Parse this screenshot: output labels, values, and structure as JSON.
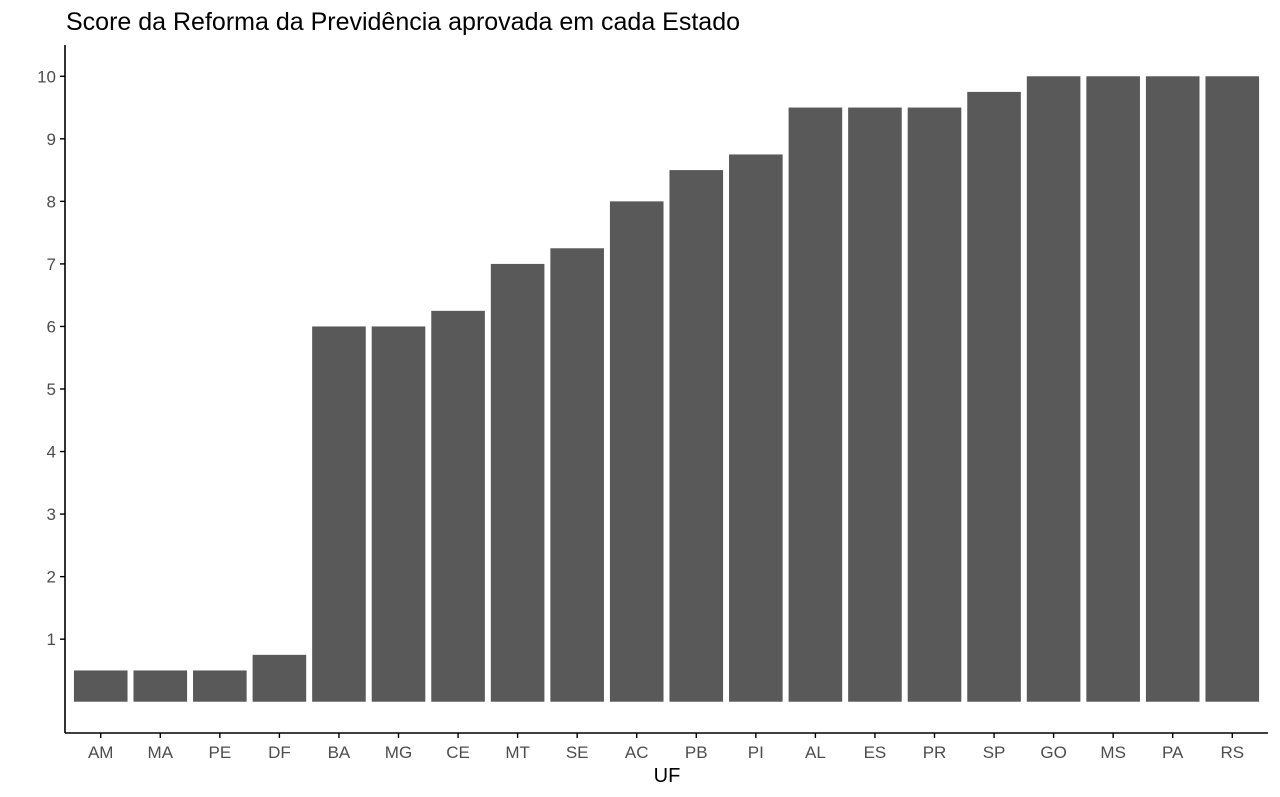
{
  "chart_data": {
    "type": "bar",
    "title": "Score da Reforma da Previdência aprovada em cada Estado",
    "xlabel": "UF",
    "ylabel": "",
    "categories": [
      "AM",
      "MA",
      "PE",
      "DF",
      "BA",
      "MG",
      "CE",
      "MT",
      "SE",
      "AC",
      "PB",
      "PI",
      "AL",
      "ES",
      "PR",
      "SP",
      "GO",
      "MS",
      "PA",
      "RS"
    ],
    "values": [
      0.5,
      0.5,
      0.5,
      0.75,
      6,
      6,
      6.25,
      7,
      7.25,
      8,
      8.5,
      8.75,
      9.5,
      9.5,
      9.5,
      9.75,
      10,
      10,
      10,
      10
    ],
    "yticks": [
      1,
      2,
      3,
      4,
      5,
      6,
      7,
      8,
      9,
      10
    ],
    "ylim": [
      -0.5,
      10.5
    ],
    "grid": false,
    "legend": "none",
    "colors": {
      "bar": "#595959",
      "axis": "#000000",
      "tick_label": "#4d4d4d",
      "background": "#ffffff"
    }
  }
}
